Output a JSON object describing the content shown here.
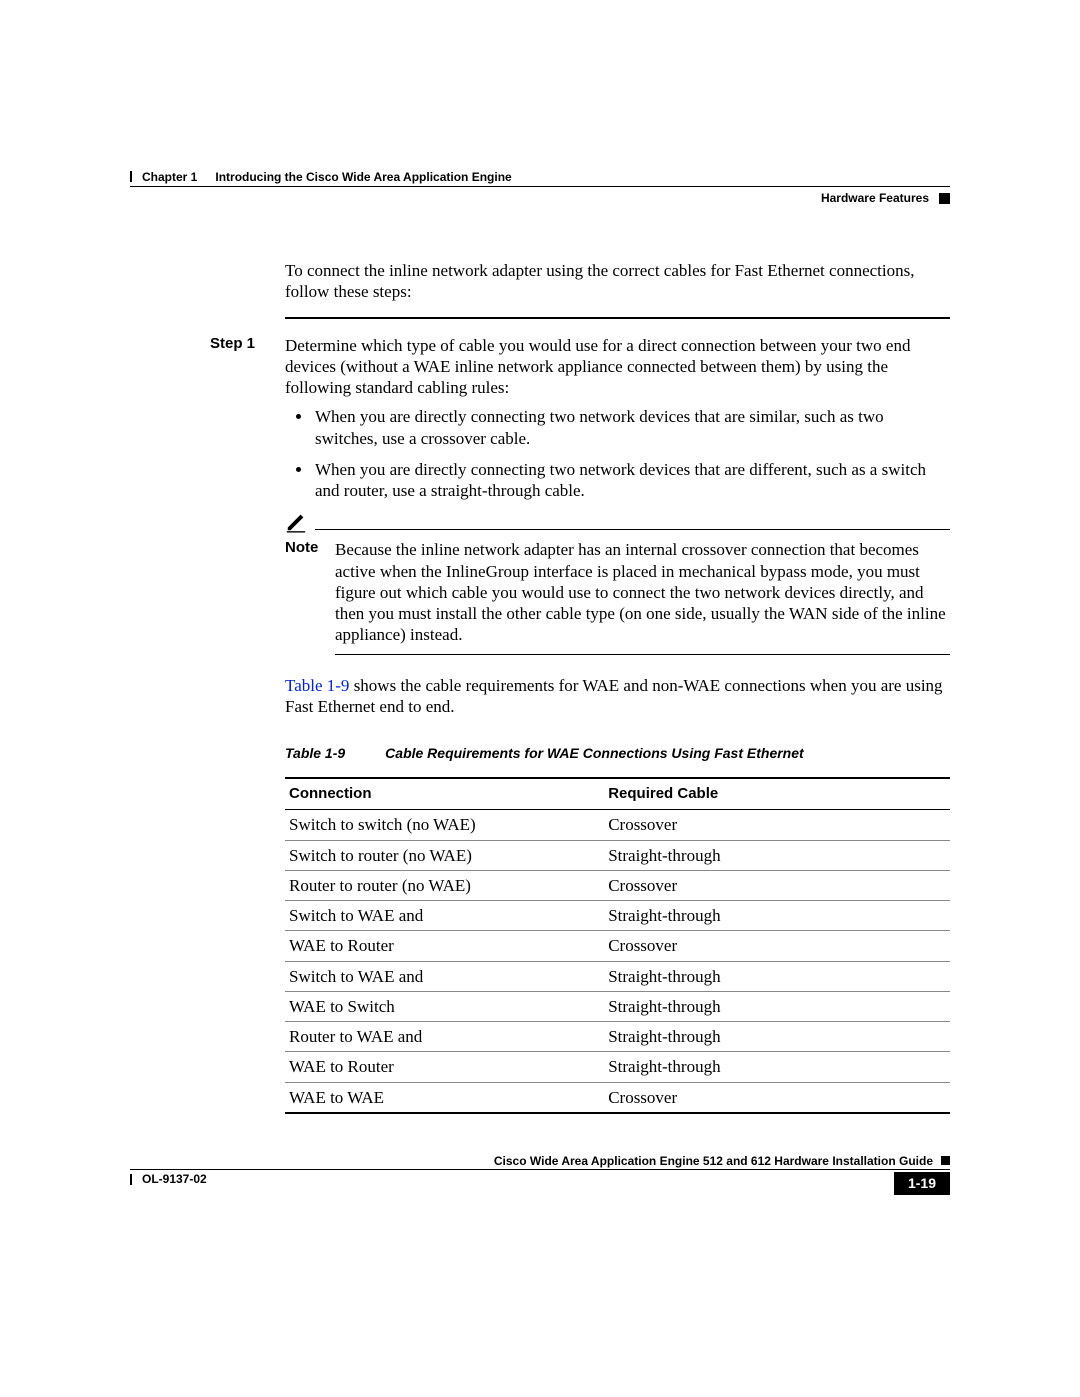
{
  "header": {
    "chapter_label": "Chapter 1",
    "chapter_title": "Introducing the Cisco Wide Area Application Engine",
    "section_title": "Hardware Features"
  },
  "intro": "To connect the inline network adapter using the correct cables for Fast Ethernet connections, follow these steps:",
  "step": {
    "label": "Step 1",
    "text": "Determine which type of cable you would use for a direct connection between your two end devices (without a WAE inline network appliance connected between them) by using the following standard cabling rules:",
    "bullets": [
      "When you are directly connecting two network devices that are similar, such as two switches, use a crossover cable.",
      "When you are directly connecting two network devices that are different, such as a switch and router, use a straight-through cable."
    ]
  },
  "note": {
    "label": "Note",
    "text": "Because the inline network adapter has an internal crossover connection that becomes active when the InlineGroup interface is placed in mechanical bypass mode, you must figure out which cable you would use to connect the two network devices directly, and then you must install the other cable type (on one side, usually the WAN side of the inline appliance) instead."
  },
  "after_note_link": "Table 1-9",
  "after_note_rest": " shows the cable requirements for WAE and non-WAE connections when you are using Fast Ethernet end to end.",
  "table": {
    "number": "Table 1-9",
    "title": "Cable Requirements for WAE Connections Using Fast Ethernet",
    "columns": [
      "Connection",
      "Required Cable"
    ],
    "rows": [
      [
        "Switch to switch (no WAE)",
        "Crossover"
      ],
      [
        "Switch to router (no WAE)",
        "Straight-through"
      ],
      [
        "Router to router (no WAE)",
        "Crossover"
      ],
      [
        "Switch to WAE and",
        "Straight-through"
      ],
      [
        "WAE to Router",
        "Crossover"
      ],
      [
        "Switch to WAE and",
        "Straight-through"
      ],
      [
        "WAE to Switch",
        "Straight-through"
      ],
      [
        "Router to WAE and",
        "Straight-through"
      ],
      [
        "WAE to Router",
        "Straight-through"
      ],
      [
        "WAE to WAE",
        "Crossover"
      ]
    ],
    "col_widths": [
      "48%",
      "52%"
    ]
  },
  "footer": {
    "guide_title": "Cisco Wide Area Application Engine 512 and 612 Hardware Installation Guide",
    "doc_number": "OL-9137-02",
    "page_number": "1-19"
  },
  "colors": {
    "link": "#0024d3",
    "text": "#000000",
    "background": "#ffffff"
  }
}
